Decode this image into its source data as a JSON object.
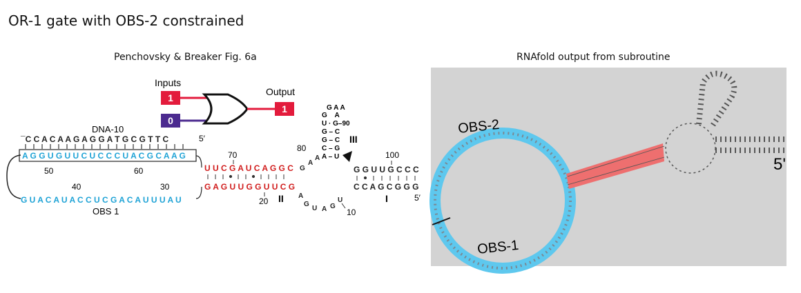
{
  "title": "OR-1 gate with OBS-2 constrained",
  "left_panel": {
    "caption": "Penchovsky & Breaker Fig. 6a",
    "inputs_label": "Inputs",
    "output_label": "Output",
    "input_a": "1",
    "input_b": "0",
    "output_value": "1",
    "dna10_label": "DNA-10",
    "dna10_seq": "¯C C A C A A G A G G A T G C G T T C",
    "five_prime_top": "5′",
    "blue_top_seq": "A G G U G U U C U C C C U A C G C A A G",
    "blue_bottom_seq": "G U A C A U A C C U C G A C A U U U A U",
    "obs1_label": "OBS 1",
    "red_top_seq": "U U C G A U C A G G C",
    "red_bottom_seq": "G A G U U G G U U C G",
    "right_top_seq": "G G U U G C C C",
    "right_bottom_seq": "C C A G C G G G",
    "five_prime_right": "5′",
    "loop_top": "G A A",
    "stem3_rows": [
      "G    A",
      "U · G–90",
      "G – C",
      "G – C",
      "C – G",
      "A – U"
    ],
    "numbers": {
      "n50": "50",
      "n60": "60",
      "n40": "40",
      "n30": "30",
      "n70": "70",
      "n80": "80",
      "n100": "100",
      "n20": "20",
      "n10": "10"
    },
    "helix_labels": {
      "h1": "I",
      "h2": "II",
      "h3": "III"
    },
    "colors": {
      "input_red": "#e31b3c",
      "input_purple": "#4b2a8f",
      "blue": "#1fa3d6",
      "red": "#d11d1d"
    }
  },
  "right_panel": {
    "caption": "RNAfold output from subroutine",
    "obs2_label": "OBS-2",
    "obs1_label": "OBS-1",
    "five_prime": "5'",
    "colors": {
      "background": "#d3d3d3",
      "ring": "#5ec8ee",
      "stem": "#ee6f6f"
    }
  }
}
